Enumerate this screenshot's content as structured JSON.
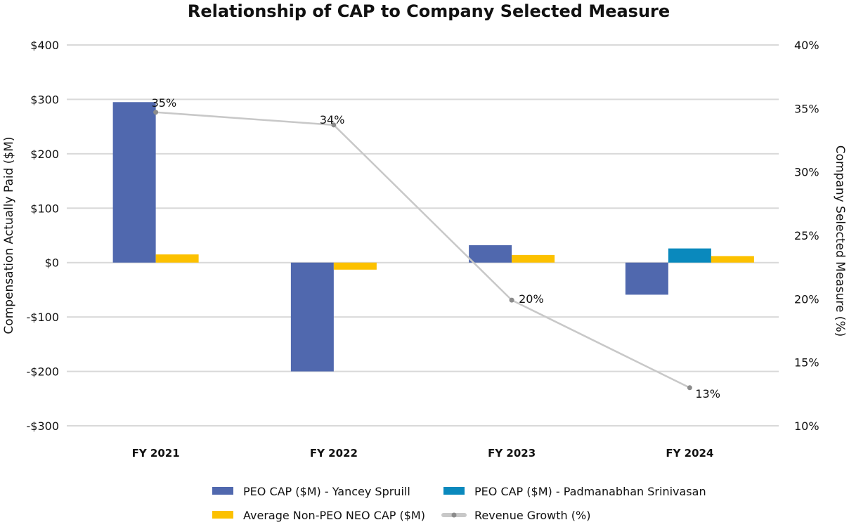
{
  "chart_data": {
    "type": "bar",
    "title": "Relationship of CAP to Company Selected Measure",
    "categories": [
      "FY 2021",
      "FY 2022",
      "FY 2023",
      "FY 2024"
    ],
    "ylabel": "Compensation Actually Paid ($M)",
    "y2label": "Company Selected Measure (%)",
    "ylim": [
      -300,
      400
    ],
    "y2lim": [
      10,
      40
    ],
    "yticks": [
      "$400",
      "$300",
      "$200",
      "$100",
      "$0",
      "-$100",
      "-$200",
      "-$300"
    ],
    "yticks_values": [
      400,
      300,
      200,
      100,
      0,
      -100,
      -200,
      -300
    ],
    "y2ticks": [
      "40%",
      "35%",
      "30%",
      "25%",
      "20%",
      "15%",
      "10%"
    ],
    "y2ticks_values": [
      40,
      35,
      30,
      25,
      20,
      15,
      10
    ],
    "grid": true,
    "legend_position": "bottom",
    "series": [
      {
        "name": "PEO CAP ($M) - Yancey Spruill",
        "type": "bar",
        "axis": "left",
        "color": "#5068AE",
        "values": [
          295,
          -200,
          32,
          -59
        ]
      },
      {
        "name": "PEO CAP ($M) - Padmanabhan Srinivasan",
        "type": "bar",
        "axis": "left",
        "color": "#0A89BD",
        "values": [
          null,
          null,
          null,
          26
        ]
      },
      {
        "name": "Average Non-PEO NEO CAP ($M)",
        "type": "bar",
        "axis": "left",
        "color": "#FCC100",
        "values": [
          15,
          -13,
          14,
          12
        ]
      },
      {
        "name": "Revenue Growth (%)",
        "type": "line",
        "axis": "right",
        "color": "#C8C8C8",
        "marker_color": "#8C8C8C",
        "values": [
          34.7,
          33.7,
          19.9,
          13.0
        ],
        "data_labels": [
          "35%",
          "34%",
          "20%",
          "13%"
        ]
      }
    ]
  }
}
